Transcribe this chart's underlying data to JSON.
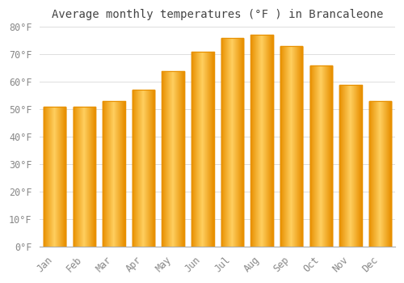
{
  "title": "Average monthly temperatures (°F ) in Brancaleone",
  "months": [
    "Jan",
    "Feb",
    "Mar",
    "Apr",
    "May",
    "Jun",
    "Jul",
    "Aug",
    "Sep",
    "Oct",
    "Nov",
    "Dec"
  ],
  "values": [
    51,
    51,
    53,
    57,
    64,
    71,
    76,
    77,
    73,
    66,
    59,
    53
  ],
  "bar_color_center": "#FFD060",
  "bar_color_edge": "#E89000",
  "background_color": "#FFFFFF",
  "plot_bg_color": "#FFFFFF",
  "grid_color": "#DDDDDD",
  "text_color": "#888888",
  "title_color": "#444444",
  "ylim": [
    0,
    80
  ],
  "yticks": [
    0,
    10,
    20,
    30,
    40,
    50,
    60,
    70,
    80
  ],
  "ytick_labels": [
    "0°F",
    "10°F",
    "20°F",
    "30°F",
    "40°F",
    "50°F",
    "60°F",
    "70°F",
    "80°F"
  ],
  "title_fontsize": 10,
  "tick_fontsize": 8.5
}
